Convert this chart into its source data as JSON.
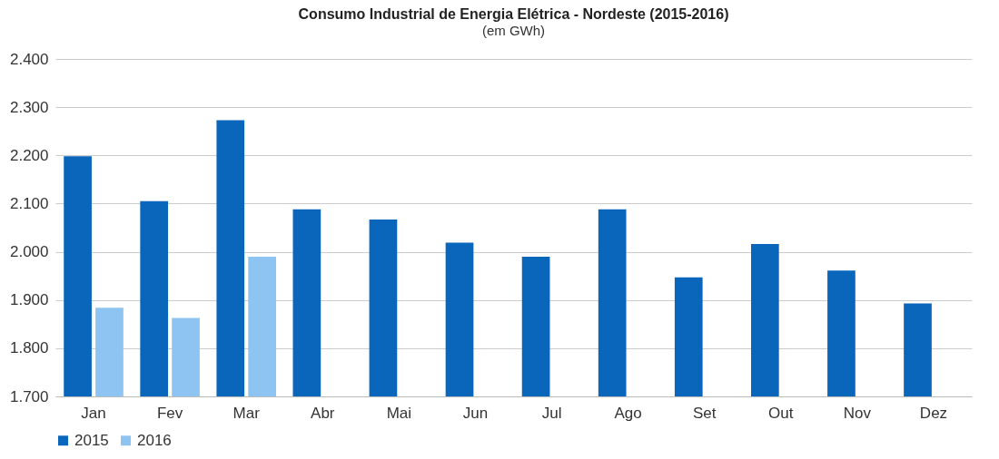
{
  "chart_data": {
    "type": "bar",
    "title": "Consumo Industrial de Energia Elétrica - Nordeste (2015-2016)",
    "subtitle": "(em GWh)",
    "categories": [
      "Jan",
      "Fev",
      "Mar",
      "Abr",
      "Mai",
      "Jun",
      "Jul",
      "Ago",
      "Set",
      "Out",
      "Nov",
      "Dez"
    ],
    "series": [
      {
        "name": "2015",
        "color": "#0a66bb",
        "values": [
          2198,
          2105,
          2273,
          2088,
          2067,
          2019,
          1990,
          2088,
          1947,
          2016,
          1961,
          1893
        ]
      },
      {
        "name": "2016",
        "color": "#8ec4f2",
        "values": [
          1884,
          1863,
          1990,
          null,
          null,
          null,
          null,
          null,
          null,
          null,
          null,
          null
        ]
      }
    ],
    "ylim": [
      1700,
      2400
    ],
    "yticks": [
      {
        "value": 1700,
        "label": "1.700"
      },
      {
        "value": 1800,
        "label": "1.800"
      },
      {
        "value": 1900,
        "label": "1.900"
      },
      {
        "value": 2000,
        "label": "2.000"
      },
      {
        "value": 2100,
        "label": "2.100"
      },
      {
        "value": 2200,
        "label": "2.200"
      },
      {
        "value": 2300,
        "label": "2.300"
      },
      {
        "value": 2400,
        "label": "2.400"
      }
    ],
    "grid": "y",
    "legend": "bottom"
  }
}
